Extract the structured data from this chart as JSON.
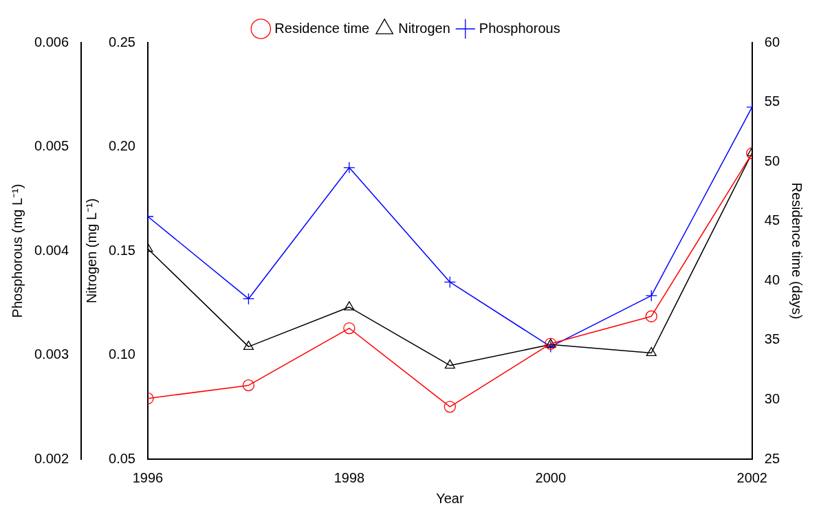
{
  "chart_data": {
    "type": "line",
    "xlabel": "Year",
    "ylabel": "Nitrogen (mg L⁻¹)",
    "y2label": "Residence time (days)",
    "y3label": "Phosphorous (mg L⁻¹)",
    "x": [
      1996,
      1997,
      1998,
      1999,
      2000,
      2001,
      2002
    ],
    "xlim": [
      1996,
      2002
    ],
    "xticks": [
      1996,
      1998,
      2000,
      2002
    ],
    "ylim": [
      0.05,
      0.25
    ],
    "yticks": [
      {
        "value": 0.05,
        "label": "0.05"
      },
      {
        "value": 0.1,
        "label": "0.10"
      },
      {
        "value": 0.15,
        "label": "0.15"
      },
      {
        "value": 0.2,
        "label": "0.20"
      },
      {
        "value": 0.25,
        "label": "0.25"
      }
    ],
    "y2lim": [
      25,
      60
    ],
    "y2ticks": [
      25,
      30,
      35,
      40,
      45,
      50,
      55,
      60
    ],
    "y3lim": [
      0.002,
      0.006
    ],
    "y3ticks": [
      0.002,
      0.003,
      0.004,
      0.005,
      0.006
    ],
    "grid": false,
    "legend": "top",
    "line_style": "solid",
    "series": [
      {
        "name": "Residence time",
        "color": "#ff0000",
        "axis": "y2",
        "marker": "circle",
        "values": [
          30.1,
          31.2,
          36.0,
          29.4,
          34.7,
          37.0,
          50.7
        ]
      },
      {
        "name": "Nitrogen",
        "color": "#000000",
        "axis": "y",
        "marker": "triangle",
        "values": [
          0.151,
          0.104,
          0.123,
          0.095,
          0.105,
          0.101,
          0.197
        ]
      },
      {
        "name": "Phosphorous",
        "color": "#0000ff",
        "axis": "y3",
        "marker": "cross",
        "values": [
          0.00433,
          0.00354,
          0.0048,
          0.0037,
          0.00308,
          0.00357,
          0.00538
        ]
      }
    ]
  }
}
